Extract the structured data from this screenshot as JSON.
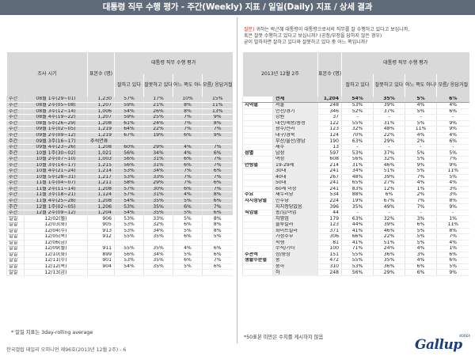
{
  "title": "대통령 직무 수행 평가 - 주간(Weekly) 지표 / 일일(Daily) 지표 / 상세 결과",
  "description": {
    "label": "질문)",
    "lines": [
      "귀하는 박근혜 대통령이 대통령으로서의 직무를 잘 수행하고 있다고 보십니까,",
      "혹은 잘못 수행하고 있다고 보십니까? (공정/부정을 답하지 않은 경우)",
      "굳이 말하자면 잘하고 있다와 잘못하고 있다 중 어느 쪽입니까?"
    ]
  },
  "left_table": {
    "headers": {
      "period": "조사 시기",
      "sample": "표본수 (명)",
      "group": "대통령 직무 수행 평가",
      "cols": [
        "잘하고 있다",
        "잘못하고 있다",
        "어느 쪽도 아니다",
        "모름/ 응답거절"
      ]
    },
    "rows": [
      {
        "type": "주간",
        "period": "08월 1주(29~01)",
        "n": "1,230",
        "v": [
          "57%",
          "17%",
          "10%",
          "15%"
        ],
        "shade": true
      },
      {
        "type": "주간",
        "period": "08월 2주(05~08)",
        "n": "1,207",
        "v": [
          "59%",
          "21%",
          "8%",
          "11%"
        ],
        "shade": true
      },
      {
        "type": "주간",
        "period": "08월 3주(12~14)",
        "n": "1,006",
        "v": [
          "54%",
          "26%",
          "8%",
          "13%"
        ],
        "shade": true
      },
      {
        "type": "주간",
        "period": "08월 4주(19~22)",
        "n": "1,207",
        "v": [
          "59%",
          "25%",
          "7%",
          "9%"
        ],
        "shade": true
      },
      {
        "type": "주간",
        "period": "08월 5주(26~29)",
        "n": "1,208",
        "v": [
          "61%",
          "24%",
          "7%",
          "8%"
        ],
        "shade": true
      },
      {
        "type": "주간",
        "period": "09월 1주(02~05)",
        "n": "1,219",
        "v": [
          "64%",
          "22%",
          "7%",
          "7%"
        ],
        "shade": true
      },
      {
        "type": "주간",
        "period": "09월 2주(09~12)",
        "n": "1,219",
        "v": [
          "67%",
          "19%",
          "6%",
          "9%"
        ],
        "shade": true
      },
      {
        "type": "주간",
        "period": "09월 3주(16~17)",
        "n": "",
        "v": [
          "",
          "",
          "",
          ""
        ],
        "note": "추석연휴",
        "shade": true
      },
      {
        "type": "주간",
        "period": "09월 4주(23~26)",
        "n": "1,208",
        "v": [
          "60%",
          "29%",
          "4%",
          "7%"
        ],
        "shade": true
      },
      {
        "type": "주간",
        "period": "10월 1주(30~02)",
        "n": "1,021",
        "v": [
          "56%",
          "34%",
          "4%",
          "6%"
        ],
        "shade": true
      },
      {
        "type": "주간",
        "period": "10월 2주(07~10)",
        "n": "1,003",
        "v": [
          "56%",
          "31%",
          "6%",
          "7%"
        ],
        "shade": true
      },
      {
        "type": "주간",
        "period": "10월 3주(14~17)",
        "n": "1,215",
        "v": [
          "56%",
          "31%",
          "6%",
          "7%"
        ],
        "shade": true
      },
      {
        "type": "주간",
        "period": "10월 4주(21~24)",
        "n": "1,214",
        "v": [
          "53%",
          "34%",
          "7%",
          "6%"
        ],
        "shade": true
      },
      {
        "type": "주간",
        "period": "10월 5주(28~31)",
        "n": "1,217",
        "v": [
          "53%",
          "33%",
          "7%",
          "7%"
        ],
        "shade": true,
        "bold": true
      },
      {
        "type": "주간",
        "period": "11월 1주(04~07)",
        "n": "1,211",
        "v": [
          "58%",
          "29%",
          "7%",
          "6%"
        ],
        "shade": true
      },
      {
        "type": "주간",
        "period": "11월 2주(11~14)",
        "n": "1,208",
        "v": [
          "57%",
          "30%",
          "6%",
          "7%"
        ],
        "shade": true
      },
      {
        "type": "주간",
        "period": "11월 3주(18~21)",
        "n": "1,124",
        "v": [
          "57%",
          "31%",
          "4%",
          "8%"
        ],
        "shade": true
      },
      {
        "type": "주간",
        "period": "11월 4주(25~28)",
        "n": "1,208",
        "v": [
          "54%",
          "35%",
          "5%",
          "6%"
        ],
        "shade": true
      },
      {
        "type": "주간",
        "period": "12월 1주(02~05)",
        "n": "1,206",
        "v": [
          "53%",
          "35%",
          "6%",
          "7%"
        ],
        "shade": true
      },
      {
        "type": "주간",
        "period": "12월 2주(09~12)",
        "n": "1,204",
        "v": [
          "54%",
          "35%",
          "5%",
          "6%"
        ],
        "shade": true
      },
      {
        "type": "일일",
        "period": "12/02(월)",
        "n": "906",
        "v": [
          "53%",
          "33%",
          "5%",
          "8%"
        ],
        "shade": false,
        "bold": true
      },
      {
        "type": "일일",
        "period": "12/03(화)",
        "n": "905",
        "v": [
          "53%",
          "32%",
          "6%",
          "8%"
        ],
        "shade": false
      },
      {
        "type": "일일",
        "period": "12/04(수)",
        "n": "913",
        "v": [
          "53%",
          "34%",
          "5%",
          "8%"
        ],
        "shade": false
      },
      {
        "type": "일일",
        "period": "12/05(목)",
        "n": "912",
        "v": [
          "55%",
          "35%",
          "6%",
          "5%"
        ],
        "shade": false
      },
      {
        "type": "일일",
        "period": "12/06(금)",
        "n": "",
        "v": [
          "",
          "",
          "",
          ""
        ],
        "shade": false
      },
      {
        "type": "일일",
        "period": "12/09(월)",
        "n": "911",
        "v": [
          "55%",
          "35%",
          "4%",
          "6%"
        ],
        "shade": false,
        "grey": true
      },
      {
        "type": "일일",
        "period": "12/10(화)",
        "n": "899",
        "v": [
          "56%",
          "34%",
          "5%",
          "6%"
        ],
        "shade": false
      },
      {
        "type": "일일",
        "period": "12/11(수)",
        "n": "901",
        "v": [
          "53%",
          "35%",
          "6%",
          "7%"
        ],
        "shade": false
      },
      {
        "type": "일일",
        "period": "12/12(목)",
        "n": "904",
        "v": [
          "54%",
          "35%",
          "5%",
          "6%"
        ],
        "shade": false
      },
      {
        "type": "일일",
        "period": "12/13(금)",
        "n": "",
        "v": [
          "",
          "",
          "",
          ""
        ],
        "shade": false
      }
    ],
    "note": "* 일일 지표는 3day-rolling average"
  },
  "right_table": {
    "headers": {
      "period": "2013년 12월 2주",
      "sample": "표본수 (명)",
      "group": "대통령 직무 수행 평가",
      "cols": [
        "잘하고 있다",
        "잘못하고 있다",
        "어느 쪽도 아니다",
        "모름/ 응답거절"
      ]
    },
    "rows": [
      {
        "cat": "",
        "sub": "전체",
        "n": "1,204",
        "v": [
          "54%",
          "35%",
          "5%",
          "6%"
        ],
        "total": true
      },
      {
        "cat": "지역별",
        "sub": "서울",
        "n": "248",
        "v": [
          "53%",
          "39%",
          "4%",
          "4%"
        ]
      },
      {
        "cat": "",
        "sub": "인천/경기",
        "n": "346",
        "v": [
          "52%",
          "37%",
          "5%",
          "6%"
        ]
      },
      {
        "cat": "",
        "sub": "강원",
        "n": "37",
        "v": [
          "-",
          "-",
          "-",
          "-"
        ]
      },
      {
        "cat": "",
        "sub": "대전/세종/충청",
        "n": "122",
        "v": [
          "55%",
          "31%",
          "5%",
          "9%"
        ]
      },
      {
        "cat": "",
        "sub": "광주/전라",
        "n": "123",
        "v": [
          "32%",
          "48%",
          "11%",
          "9%"
        ]
      },
      {
        "cat": "",
        "sub": "대구/경북",
        "n": "124",
        "v": [
          "70%",
          "22%",
          "4%",
          "4%"
        ]
      },
      {
        "cat": "",
        "sub": "부산/울산/경남",
        "n": "190",
        "v": [
          "63%",
          "29%",
          "2%",
          "6%"
        ]
      },
      {
        "cat": "",
        "sub": "제주",
        "n": "13",
        "v": [
          "-",
          "-",
          "-",
          "-"
        ]
      },
      {
        "cat": "성별",
        "sub": "남성",
        "n": "597",
        "v": [
          "53%",
          "37%",
          "5%",
          "5%"
        ],
        "gap": true
      },
      {
        "cat": "",
        "sub": "여성",
        "n": "608",
        "v": [
          "56%",
          "32%",
          "5%",
          "7%"
        ]
      },
      {
        "cat": "연령별",
        "sub": "19-29세",
        "n": "214",
        "v": [
          "31%",
          "46%",
          "9%",
          "9%"
        ],
        "gap": true
      },
      {
        "cat": "",
        "sub": "30대",
        "n": "241",
        "v": [
          "34%",
          "51%",
          "5%",
          "11%"
        ]
      },
      {
        "cat": "",
        "sub": "40대",
        "n": "267",
        "v": [
          "48%",
          "39%",
          "7%",
          "5%"
        ]
      },
      {
        "cat": "",
        "sub": "50대",
        "n": "241",
        "v": [
          "65%",
          "27%",
          "4%",
          "4%"
        ]
      },
      {
        "cat": "",
        "sub": "60세 이상",
        "n": "241",
        "v": [
          "83%",
          "12%",
          "1%",
          "3%"
        ]
      },
      {
        "cat": "주요",
        "sub": "새누리당",
        "n": "534",
        "v": [
          "88%",
          "6%",
          "2%",
          "3%"
        ],
        "gap": true
      },
      {
        "cat": "지지정당별",
        "sub": "민주당",
        "n": "224",
        "v": [
          "19%",
          "67%",
          "7%",
          "8%"
        ]
      },
      {
        "cat": "",
        "sub": "지지정당없음",
        "n": "396",
        "v": [
          "35%",
          "49%",
          "7%",
          "9%"
        ]
      },
      {
        "cat": "직업별",
        "sub": "농/임/어업",
        "n": "44",
        "v": [
          "-",
          "-",
          "-",
          "-"
        ],
        "gap": true
      },
      {
        "cat": "",
        "sub": "자영업",
        "n": "179",
        "v": [
          "63%",
          "32%",
          "3%",
          "1%"
        ]
      },
      {
        "cat": "",
        "sub": "블루칼라",
        "n": "123",
        "v": [
          "44%",
          "39%",
          "6%",
          "11%"
        ]
      },
      {
        "cat": "",
        "sub": "화이트칼라",
        "n": "371",
        "v": [
          "41%",
          "46%",
          "5%",
          "8%"
        ]
      },
      {
        "cat": "",
        "sub": "가정주부",
        "n": "306",
        "v": [
          "66%",
          "22%",
          "5%",
          "7%"
        ]
      },
      {
        "cat": "",
        "sub": "학생",
        "n": "81",
        "v": [
          "41%",
          "51%",
          "5%",
          "4%"
        ]
      },
      {
        "cat": "",
        "sub": "무직/기타",
        "n": "100",
        "v": [
          "71%",
          "24%",
          "4%",
          "1%"
        ]
      },
      {
        "cat": "주관적",
        "sub": "상/중상",
        "n": "151",
        "v": [
          "55%",
          "36%",
          "3%",
          "6%"
        ],
        "gap": true
      },
      {
        "cat": "생활수준별",
        "sub": "중",
        "n": "472",
        "v": [
          "55%",
          "35%",
          "4%",
          "6%"
        ]
      },
      {
        "cat": "",
        "sub": "중하",
        "n": "310",
        "v": [
          "53%",
          "36%",
          "6%",
          "5%"
        ]
      },
      {
        "cat": "",
        "sub": "하",
        "n": "248",
        "v": [
          "56%",
          "29%",
          "6%",
          "9%"
        ]
      }
    ],
    "note": "*50표본 미만은 수치를 게시하지 않음"
  },
  "footer": "한국갤럽 데일리 오피니언 제96호(2013년 12월 2주) - 6",
  "logo": {
    "word": "Gallup",
    "korea": "KOREA",
    "color": "#1c3f7a"
  },
  "colors": {
    "header_bg": "#5f6b78",
    "cell_grey": "#d9d9d9",
    "accent_red": "#c0392b"
  }
}
